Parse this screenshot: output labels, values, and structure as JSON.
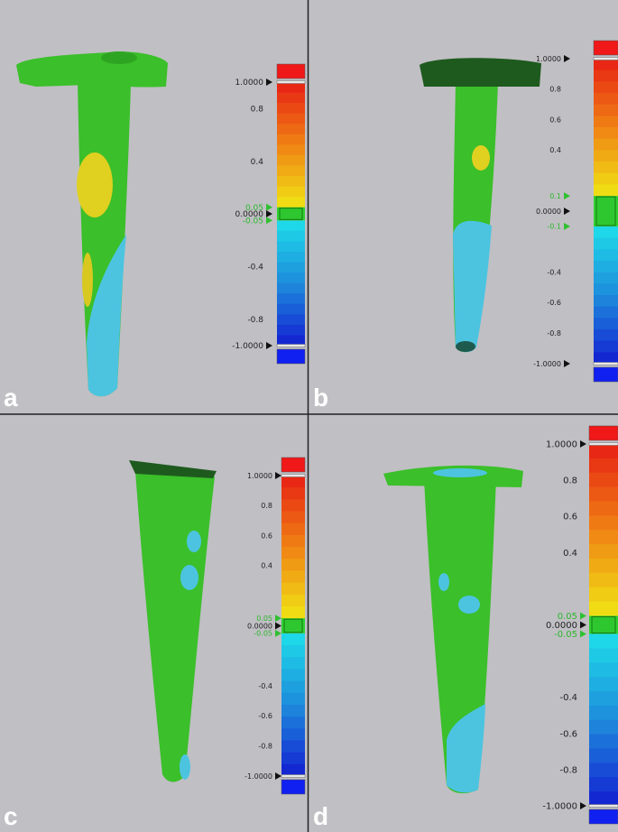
{
  "panels": [
    {
      "label": "a",
      "scale_labels": [
        "1.0000",
        "0.8",
        "0.4",
        "0.05",
        "0.0000",
        "-0.05",
        "-0.4",
        "-0.8",
        "-1.0000"
      ]
    },
    {
      "label": "b",
      "scale_labels": [
        "1.0000",
        "0.8",
        "0.6",
        "0.4",
        "0.1",
        "0.0000",
        "-0.1",
        "-0.4",
        "-0.6",
        "-0.8",
        "-1.0000"
      ]
    },
    {
      "label": "c",
      "scale_labels": [
        "1.0000",
        "0.8",
        "0.6",
        "0.4",
        "0.05",
        "0.0000",
        "-0.05",
        "-0.4",
        "-0.6",
        "-0.8",
        "-1.0000"
      ]
    },
    {
      "label": "d",
      "scale_labels": [
        "1.0000",
        "0.8",
        "0.6",
        "0.4",
        "0.05",
        "0.0000",
        "-0.05",
        "-0.4",
        "-0.6",
        "-0.8",
        "-1.0000"
      ]
    }
  ]
}
